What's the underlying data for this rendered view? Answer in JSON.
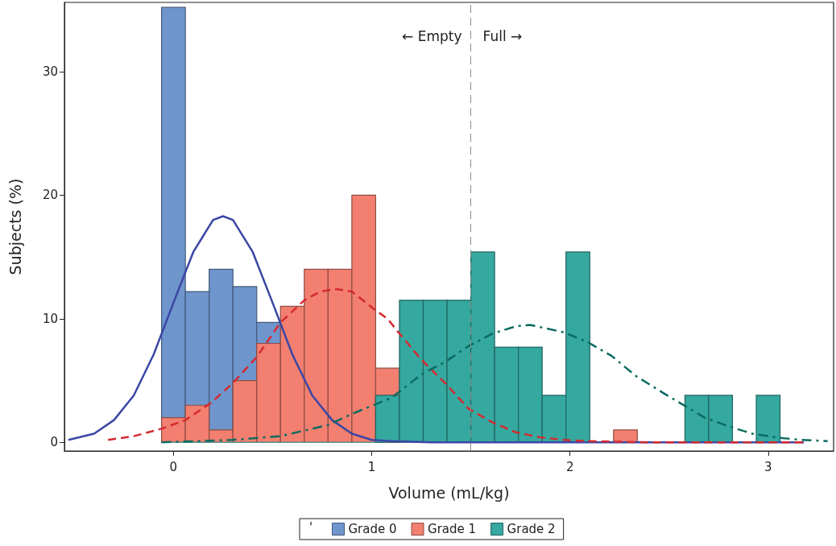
{
  "chart_data": {
    "type": "histogram",
    "xlabel": "Volume (mL/kg)",
    "ylabel": "Subjects (%)",
    "legend_title": "'",
    "legend": "bottom",
    "grid": false,
    "bins": [
      -0.06,
      0.06,
      0.18,
      0.3,
      0.42,
      0.54,
      0.66,
      0.78,
      0.9,
      1.02,
      1.14,
      1.26,
      1.38,
      1.5,
      1.62,
      1.74,
      1.86,
      1.98,
      2.1,
      2.22,
      2.34,
      2.46,
      2.58,
      2.7,
      2.82,
      2.94,
      3.06,
      3.18
    ],
    "xlim": [
      -0.55,
      3.33
    ],
    "xticks": [
      0,
      1,
      2,
      3
    ],
    "ylim": [
      -0.7,
      35.6
    ],
    "yticks": [
      0,
      10,
      20,
      30
    ],
    "series": [
      {
        "name": "Grade 0",
        "color": "#6f95cd",
        "values": [
          35.2,
          12.2,
          14.0,
          12.6,
          9.7,
          null,
          null,
          null,
          null,
          null,
          null,
          null,
          null,
          null,
          null,
          null,
          null,
          null,
          null,
          null,
          null,
          null,
          null,
          null,
          null,
          null,
          null
        ]
      },
      {
        "name": "Grade 1",
        "color": "#f27f6f",
        "values": [
          2.0,
          3.0,
          1.0,
          5.0,
          8.0,
          11.0,
          14.0,
          14.0,
          20.0,
          6.0,
          null,
          null,
          null,
          null,
          null,
          null,
          null,
          null,
          null,
          1.0,
          0,
          0,
          0,
          0,
          0,
          0,
          0
        ]
      },
      {
        "name": "Grade 2",
        "color": "#35a8a0",
        "values": [
          0,
          0,
          0,
          0,
          0,
          0,
          0,
          0,
          0,
          3.8,
          11.5,
          11.5,
          11.5,
          15.4,
          7.7,
          7.7,
          3.8,
          15.4,
          0,
          0,
          0,
          0,
          3.8,
          3.8,
          0,
          3.8,
          0
        ]
      },
      {
        "type": "line",
        "color": "#3b46a5",
        "line_style": "solid",
        "x": [
          -0.53,
          -0.4,
          -0.3,
          -0.2,
          -0.1,
          0,
          0.1,
          0.2,
          0.25,
          0.3,
          0.4,
          0.5,
          0.6,
          0.7,
          0.8,
          0.9,
          1.0,
          1.1,
          1.3,
          3.18
        ],
        "values": [
          0.2,
          0.7,
          1.8,
          3.8,
          7.1,
          11.3,
          15.4,
          18.0,
          18.3,
          18.0,
          15.4,
          11.3,
          7.1,
          3.8,
          1.8,
          0.7,
          0.2,
          0.1,
          0,
          0
        ]
      },
      {
        "type": "line",
        "color": "#d42a2f",
        "line_style": "dashed",
        "x": [
          -0.33,
          -0.2,
          -0.06,
          0.06,
          0.19,
          0.3,
          0.42,
          0.54,
          0.66,
          0.74,
          0.82,
          0.9,
          1.01,
          1.08,
          1.13,
          1.25,
          1.37,
          1.49,
          1.61,
          1.73,
          1.85,
          1.97,
          2.09,
          2.4,
          3.18
        ],
        "values": [
          0.2,
          0.5,
          1.1,
          1.8,
          3.2,
          4.8,
          6.9,
          9.7,
          11.5,
          12.2,
          12.4,
          12.2,
          10.8,
          10.0,
          9.0,
          6.7,
          4.8,
          2.7,
          1.6,
          0.8,
          0.4,
          0.2,
          0.1,
          0,
          0
        ]
      },
      {
        "type": "line",
        "color": "#0b6b60",
        "line_style": "dashdot",
        "x": [
          -0.06,
          0.3,
          0.54,
          0.78,
          0.9,
          1.1,
          1.25,
          1.37,
          1.49,
          1.61,
          1.73,
          1.8,
          1.97,
          2.09,
          2.21,
          2.33,
          2.48,
          2.68,
          2.8,
          2.92,
          3.04,
          3.16,
          3.3
        ],
        "values": [
          0,
          0.2,
          0.5,
          1.4,
          2.3,
          3.6,
          5.5,
          6.5,
          7.8,
          8.8,
          9.4,
          9.5,
          8.9,
          8.1,
          7.0,
          5.4,
          3.9,
          2.0,
          1.3,
          0.7,
          0.4,
          0.2,
          0.1
        ]
      }
    ],
    "ref_lines": [
      {
        "axis": "x",
        "value": 1.5,
        "color": "#8c8c8c",
        "line_style": "dashed"
      }
    ],
    "annotations": [
      "← Empty",
      "Full →"
    ]
  }
}
